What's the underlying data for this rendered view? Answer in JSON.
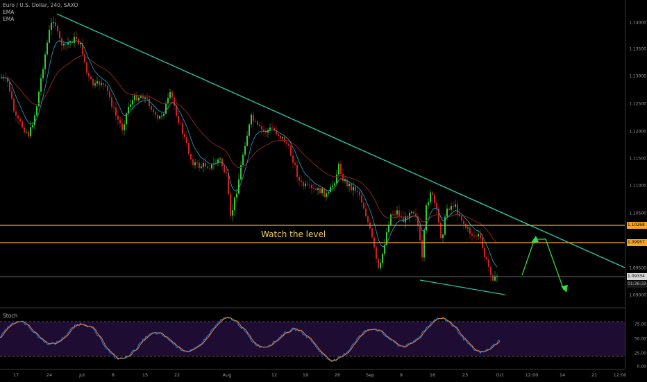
{
  "legend": {
    "title": "Euro / U.S. Dollar, 240, SAXO",
    "ema1": "EMA",
    "ema2": "EMA"
  },
  "stoch_label": "Stoch",
  "annotation": "Watch the level",
  "price_axis": {
    "ticks": [
      "1.14000",
      "1.13500",
      "1.13000",
      "1.12500",
      "1.12000",
      "1.11500",
      "1.11000",
      "1.10500",
      "1.09500",
      "1.09000"
    ],
    "badge_upper": "1.10268",
    "badge_lower": "1.09957",
    "badge_current": "1.09334",
    "countdown": "01:36:33"
  },
  "stoch_axis": {
    "ticks": [
      "75.00",
      "50.00",
      "25.00",
      "0.00"
    ]
  },
  "time_axis": {
    "ticks": [
      "17",
      "24",
      "Jul",
      "8",
      "15",
      "22",
      "Aug",
      "12",
      "19",
      "26",
      "Sep",
      "9",
      "16",
      "23",
      "Oct",
      "12:00",
      "14",
      "21",
      "12:00"
    ]
  },
  "colors": {
    "background": "#000000",
    "bull": "#33cc33",
    "bear": "#cc2222",
    "trendline": "#2bc4a4",
    "level": "#f5a623",
    "ema_fast": "#27a9c7",
    "ema_slow": "#8a2323",
    "stoch_k": "#2f7fd6",
    "stoch_d": "#e8843c",
    "stoch_band": "#1e0c33"
  }
}
